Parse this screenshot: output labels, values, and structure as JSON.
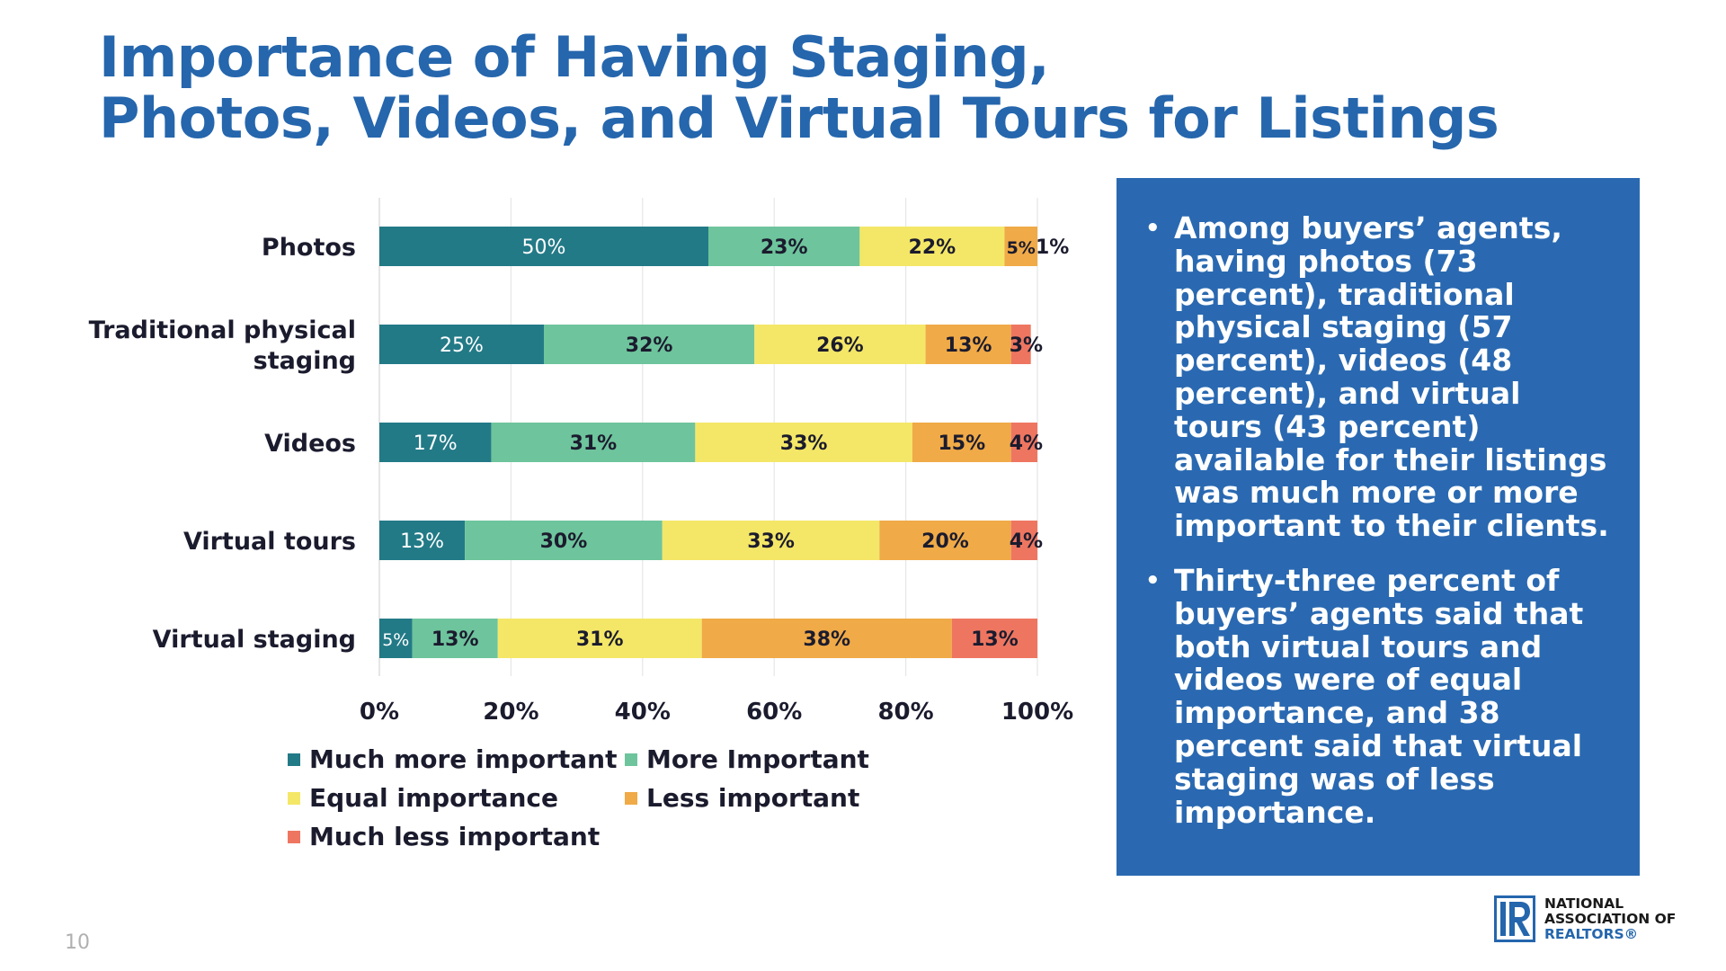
{
  "title": {
    "line1": "Importance of Having Staging,",
    "line2": "Photos, Videos, and Virtual Tours for Listings"
  },
  "chart_data": {
    "type": "bar",
    "orientation": "horizontal",
    "stacked": true,
    "categories": [
      "Photos",
      "Traditional physical staging",
      "Videos",
      "Virtual tours",
      "Virtual staging"
    ],
    "category_label_lines": [
      [
        "Photos"
      ],
      [
        "Traditional physical",
        "staging"
      ],
      [
        "Videos"
      ],
      [
        "Virtual tours"
      ],
      [
        "Virtual staging"
      ]
    ],
    "series": [
      {
        "name": "Much more important",
        "color": "#237a87",
        "label_color": "#ffffff",
        "values": [
          50,
          25,
          17,
          13,
          5
        ]
      },
      {
        "name": "More Important",
        "color": "#6ec49c",
        "label_color": "#1b1b2e",
        "values": [
          23,
          32,
          31,
          30,
          13
        ]
      },
      {
        "name": "Equal importance",
        "color": "#f4e767",
        "label_color": "#1b1b2e",
        "values": [
          22,
          26,
          33,
          33,
          31
        ]
      },
      {
        "name": "Less important",
        "color": "#f0aa47",
        "label_color": "#1b1b2e",
        "values": [
          5,
          13,
          15,
          20,
          38
        ]
      },
      {
        "name": "Much less important",
        "color": "#ee7660",
        "label_color": "#1b1b2e",
        "values": [
          1,
          3,
          4,
          4,
          13
        ]
      }
    ],
    "xlim": [
      0,
      100
    ],
    "xticks": [
      "0%",
      "20%",
      "40%",
      "60%",
      "80%",
      "100%"
    ],
    "grid": "vertical",
    "legend": "bottom",
    "value_suffix": "%"
  },
  "callout": {
    "bullets": [
      "Among buyers’ agents, having photos (73 percent), traditional physical staging (57 percent), videos (48 percent), and virtual tours (43 percent) available for their listings was much more or more important to their clients.",
      "Thirty-three percent of buyers’ agents said that both virtual tours and videos were of equal importance, and 38 percent said that virtual staging was of less importance."
    ]
  },
  "page_number": "10",
  "logo": {
    "line1": "NATIONAL",
    "line2": "ASSOCIATION OF",
    "line3": "REALTORS®",
    "brand_color": "#2566ad"
  }
}
